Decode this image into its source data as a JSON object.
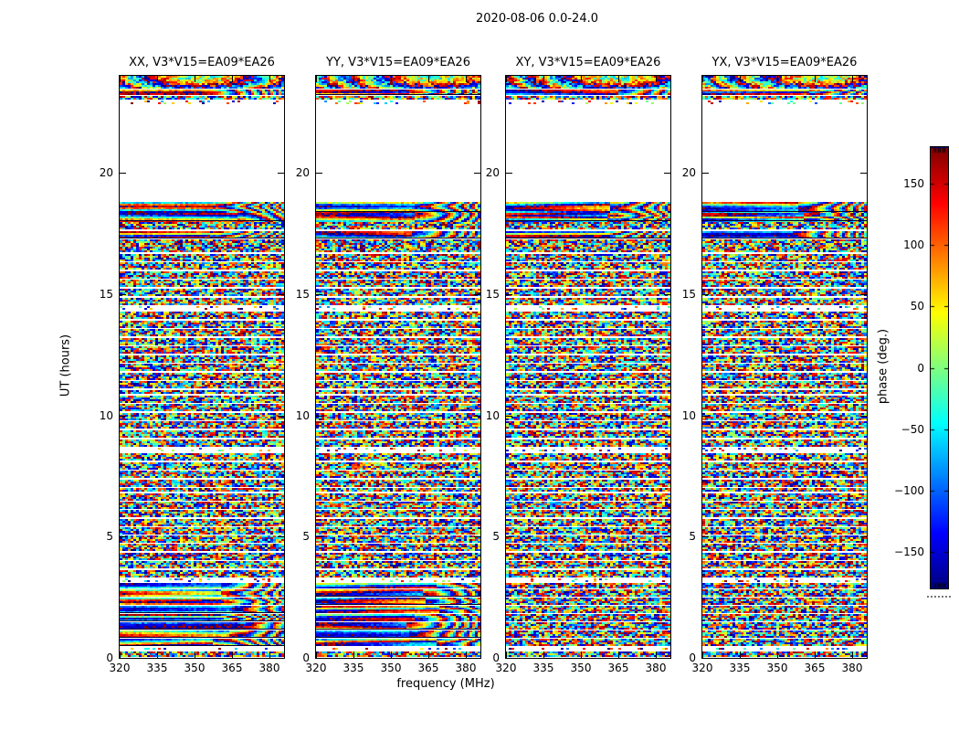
{
  "title": "2020-08-06 0.0-24.0",
  "axes": {
    "x_label": "frequency (MHz)",
    "y_label": "UT (hours)",
    "x_ticks": [
      "320",
      "335",
      "350",
      "365",
      "380"
    ],
    "y_ticks": [
      "0",
      "5",
      "10",
      "15",
      "20"
    ]
  },
  "panels": [
    {
      "pol": "XX",
      "title": "XX, V3*V15=EA09*EA26"
    },
    {
      "pol": "YY",
      "title": "YY, V3*V15=EA09*EA26"
    },
    {
      "pol": "XY",
      "title": "XY, V3*V15=EA09*EA26"
    },
    {
      "pol": "YX",
      "title": "YX, V3*V15=EA09*EA26"
    }
  ],
  "colorbar": {
    "label": "phase (deg.)",
    "ticks": [
      "150",
      "100",
      "50",
      "0",
      "−50",
      "−100",
      "−150"
    ],
    "tick_values": [
      150,
      100,
      50,
      0,
      -50,
      -100,
      -150
    ],
    "range_deg": [
      -180,
      180
    ],
    "colormap": "jet"
  },
  "colors": {
    "background": "#ffffff",
    "frame": "#000000",
    "text": "#000000"
  },
  "chart_data": {
    "type": "heatmap",
    "layout": "1 row x 4 subplot grid, shared x and y axes, colorbar at right",
    "title": "2020-08-06 0.0-24.0",
    "subplot_titles": [
      "XX, V3*V15=EA09*EA26",
      "YY, V3*V15=EA09*EA26",
      "XY, V3*V15=EA09*EA26",
      "YX, V3*V15=EA09*EA26"
    ],
    "x_axis": {
      "label": "frequency (MHz)",
      "range_mhz": [
        320,
        386
      ],
      "tick_values": [
        320,
        335,
        350,
        365,
        380
      ]
    },
    "y_axis": {
      "label": "UT (hours)",
      "range_hours": [
        0,
        24
      ],
      "tick_values": [
        0,
        5,
        10,
        15,
        20
      ]
    },
    "colorbar": {
      "label": "phase (deg.)",
      "range_deg": [
        -180,
        180
      ],
      "tick_values": [
        150,
        100,
        50,
        0,
        -50,
        -100,
        -150
      ],
      "colormap": "jet"
    },
    "content_summary": "Visibility phase noise spectrograms for baseline V3*V15 (antennas EA09*EA26). Dense pseudo-random phase speckle in scans separated by thin white gaps; blank (flagged/no-data) interval near UT 19-23; smooth coherent rainbow phase stripes in low-UT scans of XX and YY; top band near UT 23.5-24 shows chirped fringe arcs.",
    "no_data_ut_interval": [
      18.85,
      22.85
    ],
    "coherent_phase_ut_intervals": {
      "XX": [
        [
          0.48,
          3.08
        ],
        [
          17.3,
          18.8
        ],
        [
          23.22,
          23.42
        ]
      ],
      "YY": [
        [
          0.48,
          3.08
        ],
        [
          17.3,
          18.8
        ],
        [
          23.22,
          23.42
        ]
      ],
      "XY": [
        [
          17.3,
          18.8
        ]
      ],
      "YX": [
        [
          17.3,
          18.8
        ]
      ]
    },
    "row_segments": [
      [
        0.05,
        0.28,
        "n"
      ],
      [
        0.34,
        0.42,
        "s"
      ],
      [
        0.48,
        0.78,
        "c"
      ],
      [
        0.82,
        1.12,
        "c"
      ],
      [
        1.16,
        1.46,
        "c"
      ],
      [
        1.5,
        1.8,
        "c"
      ],
      [
        1.84,
        2.14,
        "c"
      ],
      [
        2.18,
        2.48,
        "c"
      ],
      [
        2.52,
        2.82,
        "c"
      ],
      [
        2.86,
        3.08,
        "c"
      ],
      [
        3.14,
        3.26,
        "s"
      ],
      [
        3.32,
        3.62,
        "m"
      ],
      [
        3.68,
        3.98,
        "n"
      ],
      [
        4.04,
        4.34,
        "m"
      ],
      [
        4.4,
        4.7,
        "n"
      ],
      [
        4.76,
        5.04,
        "m"
      ],
      [
        5.1,
        5.4,
        "n"
      ],
      [
        5.46,
        5.74,
        "m"
      ],
      [
        5.8,
        6.1,
        "n"
      ],
      [
        6.16,
        6.44,
        "m"
      ],
      [
        6.5,
        6.8,
        "n"
      ],
      [
        6.86,
        7.0,
        "t"
      ],
      [
        7.06,
        7.36,
        "m"
      ],
      [
        7.42,
        7.72,
        "n"
      ],
      [
        7.78,
        8.08,
        "m"
      ],
      [
        8.14,
        8.44,
        "n"
      ],
      [
        8.5,
        8.66,
        "s"
      ],
      [
        8.72,
        9.02,
        "m"
      ],
      [
        9.08,
        9.38,
        "n"
      ],
      [
        9.44,
        9.74,
        "m"
      ],
      [
        9.8,
        10.1,
        "n"
      ],
      [
        10.16,
        10.46,
        "m"
      ],
      [
        10.52,
        10.82,
        "n"
      ],
      [
        10.88,
        11.04,
        "t"
      ],
      [
        11.1,
        11.4,
        "m"
      ],
      [
        11.46,
        11.76,
        "n"
      ],
      [
        11.82,
        12.12,
        "m"
      ],
      [
        12.18,
        12.48,
        "n"
      ],
      [
        12.54,
        12.84,
        "m"
      ],
      [
        12.9,
        13.2,
        "n"
      ],
      [
        13.26,
        13.56,
        "m"
      ],
      [
        13.62,
        13.92,
        "n"
      ],
      [
        13.98,
        14.28,
        "m"
      ],
      [
        14.34,
        14.5,
        "s"
      ],
      [
        14.56,
        14.86,
        "n"
      ],
      [
        14.92,
        15.22,
        "m"
      ],
      [
        15.28,
        15.58,
        "n"
      ],
      [
        15.64,
        15.94,
        "m"
      ],
      [
        16.0,
        16.3,
        "n"
      ],
      [
        16.36,
        16.66,
        "m"
      ],
      [
        16.72,
        17.02,
        "n"
      ],
      [
        17.08,
        17.24,
        "t"
      ],
      [
        17.3,
        17.6,
        "c"
      ],
      [
        17.66,
        17.96,
        "n"
      ],
      [
        18.02,
        18.34,
        "c"
      ],
      [
        18.4,
        18.8,
        "c"
      ],
      [
        22.88,
        22.98,
        "s"
      ],
      [
        23.04,
        23.16,
        "t"
      ],
      [
        23.22,
        23.42,
        "c"
      ],
      [
        23.48,
        24.0,
        "f"
      ]
    ],
    "render_seed": 1234
  }
}
